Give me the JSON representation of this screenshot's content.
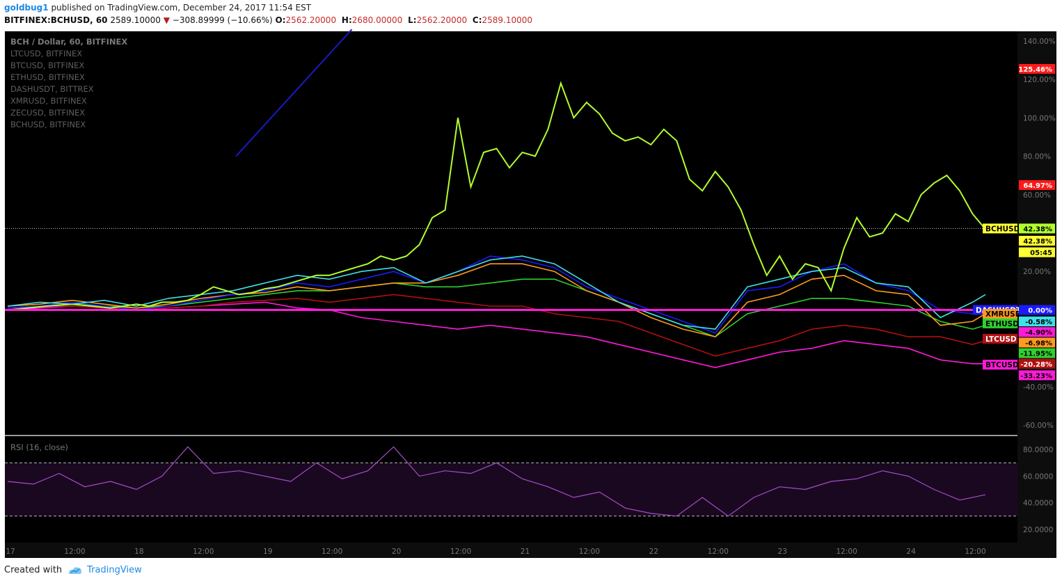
{
  "header": {
    "author": "goldbug1",
    "published_text": "published on TradingView.com, December 24, 2017 11:54 EST",
    "symbol": "BITFINEX:BCHUSD, 60",
    "last": "2589.10000",
    "change": "−308.89999 (−10.66%)",
    "o_label": "O:",
    "o_val": "2562.20000",
    "h_label": "H:",
    "h_val": "2680.00000",
    "l_label": "L:",
    "l_val": "2562.20000",
    "c_label": "C:",
    "c_val": "2589.10000"
  },
  "legend_items": [
    "BCH / Dollar, 60, BITFINEX",
    "LTCUSD, BITFINEX",
    "BTCUSD, BITFINEX",
    "ETHUSD, BITFINEX",
    "DASHUSDT, BITTREX",
    "XMRUSD, BITFINEX",
    "ZECUSD, BITFINEX",
    "BCHUSD, BITFINEX"
  ],
  "rsi_label": "RSI (16, close)",
  "footer": {
    "created_with": "Created with",
    "brand": "TradingView"
  },
  "colors": {
    "background": "#000000",
    "BCHUSD": "#b2ff2e",
    "ZECUSD": "#40e0e8",
    "DASHUSDT": "#1a1aff",
    "XMRUSD": "#ff9a1f",
    "ETHUSD": "#2fd12f",
    "LTCUSD": "#b01010",
    "BTCUSD": "#ff1ad9",
    "rsi": "#a64fc9"
  },
  "chart_data": [
    {
      "type": "line",
      "title": "BCH / Dollar, 60, BITFINEX",
      "x_ticks": [
        "17",
        "12:00",
        "18",
        "12:00",
        "19",
        "12:00",
        "20",
        "12:00",
        "21",
        "12:00",
        "22",
        "12:00",
        "23",
        "12:00",
        "24",
        "12:00"
      ],
      "y_ticks": [
        "140.00%",
        "120.00%",
        "100.00%",
        "80.00%",
        "60.00%",
        "20.00%",
        "-40.00%",
        "-60.00%"
      ],
      "ylim": [
        -65,
        145
      ],
      "markers": [
        {
          "label": "125.46%",
          "value": 125.46,
          "color": "#ff1a1a"
        },
        {
          "label": "64.97%",
          "value": 64.97,
          "color": "#ff1a1a"
        },
        {
          "label": "42.38%",
          "value": 42.38,
          "color": "#b2ff2e"
        },
        {
          "label": "42.38%",
          "value": 36,
          "color": "#ffff33"
        },
        {
          "label": "05:45",
          "value": 30,
          "color": "#ffff33"
        },
        {
          "label": "0.00%",
          "value": 0,
          "color": "#1a1aff"
        },
        {
          "label": "-0.58%",
          "value": -6,
          "color": "#40e0e8"
        },
        {
          "label": "-4.90%",
          "value": -11.5,
          "color": "#ff1ad9"
        },
        {
          "label": "-6.98%",
          "value": -17,
          "color": "#ff9a1f"
        },
        {
          "label": "-11.95%",
          "value": -22.5,
          "color": "#2fd12f"
        },
        {
          "label": "-20.28%",
          "value": -28,
          "color": "#b01010"
        },
        {
          "label": "-33.23%",
          "value": -34,
          "color": "#ff1ad9"
        }
      ],
      "series_tags": [
        {
          "name": "BCHUSD",
          "value": 42.38,
          "bg": "#ffff33",
          "fg": "#000000"
        },
        {
          "name": "DASHUSDT",
          "value": 0,
          "bg": "#1a1aff",
          "fg": "#ffffff"
        },
        {
          "name": "XMRUSD",
          "value": -2,
          "bg": "#ff9a1f",
          "fg": "#000000"
        },
        {
          "name": "ETHUSD",
          "value": -7,
          "bg": "#2fd12f",
          "fg": "#000000"
        },
        {
          "name": "LTCUSD",
          "value": -15,
          "bg": "#b01010",
          "fg": "#ffffff"
        },
        {
          "name": "BTCUSD",
          "value": -28.5,
          "bg": "#ff1ad9",
          "fg": "#000000"
        }
      ],
      "hline": {
        "value": 0,
        "color": "#ff1ad9"
      },
      "dotted_line": {
        "value": 42.38
      },
      "trendline": {
        "x": [
          3.55,
          5.35
        ],
        "y": [
          80,
          146
        ],
        "color": "#1a1ac8"
      },
      "series": [
        {
          "name": "BCHUSD",
          "color": "#b2ff2e",
          "x": [
            0,
            0.3,
            0.6,
            1,
            1.3,
            1.6,
            2,
            2.2,
            2.4,
            2.6,
            2.8,
            3,
            3.2,
            3.4,
            3.6,
            3.8,
            4,
            4.2,
            4.4,
            4.6,
            4.8,
            5,
            5.2,
            5.4,
            5.6,
            5.8,
            6,
            6.2,
            6.4,
            6.6,
            6.8,
            7,
            7.2,
            7.4,
            7.6,
            7.8,
            8,
            8.2,
            8.4,
            8.6,
            8.8,
            9,
            9.2,
            9.4,
            9.6,
            9.8,
            10,
            10.2,
            10.4,
            10.6,
            10.8,
            11,
            11.2,
            11.4,
            11.6,
            11.8,
            12,
            12.2,
            12.4,
            12.6,
            12.8,
            13,
            13.2,
            13.4,
            13.6,
            13.8,
            14,
            14.2,
            14.4,
            14.6,
            14.8,
            15,
            15.2
          ],
          "y": [
            0,
            1,
            2,
            3,
            2,
            1,
            3,
            2,
            4,
            4,
            5,
            8,
            12,
            10,
            8,
            9,
            11,
            12,
            14,
            16,
            18,
            18,
            20,
            22,
            24,
            28,
            26,
            28,
            34,
            48,
            52,
            100,
            64,
            82,
            84,
            74,
            82,
            80,
            94,
            118,
            100,
            108,
            102,
            92,
            88,
            90,
            86,
            94,
            88,
            68,
            62,
            72,
            64,
            52,
            34,
            18,
            28,
            16,
            24,
            22,
            10,
            32,
            48,
            38,
            40,
            50,
            46,
            60,
            66,
            70,
            62,
            50,
            42
          ]
        },
        {
          "name": "ZECUSD",
          "color": "#40e0e8",
          "x": [
            0,
            0.5,
            1,
            1.5,
            2,
            2.5,
            3,
            3.5,
            4,
            4.5,
            5,
            5.5,
            6,
            6.5,
            7,
            7.5,
            8,
            8.5,
            9,
            9.5,
            10,
            10.5,
            11,
            11.5,
            12,
            12.5,
            13,
            13.5,
            14,
            14.5,
            15,
            15.2
          ],
          "y": [
            2,
            4,
            3,
            5,
            2,
            6,
            8,
            10,
            14,
            18,
            16,
            20,
            22,
            14,
            20,
            26,
            28,
            24,
            14,
            4,
            -2,
            -8,
            -10,
            12,
            16,
            20,
            22,
            14,
            12,
            -4,
            4,
            8
          ]
        },
        {
          "name": "DASHUSDT",
          "color": "#1a1aff",
          "x": [
            0,
            0.5,
            1,
            1.5,
            2,
            2.5,
            3,
            3.5,
            4,
            4.5,
            5,
            5.5,
            6,
            6.5,
            7,
            7.5,
            8,
            8.5,
            9,
            9.5,
            10,
            10.5,
            11,
            11.5,
            12,
            12.5,
            13,
            13.5,
            14,
            14.5,
            15,
            15.2
          ],
          "y": [
            1,
            2,
            4,
            2,
            0,
            2,
            5,
            8,
            10,
            14,
            12,
            16,
            20,
            14,
            20,
            28,
            26,
            22,
            12,
            6,
            0,
            -6,
            -12,
            10,
            12,
            20,
            24,
            14,
            10,
            0,
            -2,
            2
          ]
        },
        {
          "name": "XMRUSD",
          "color": "#ff9a1f",
          "x": [
            0,
            0.5,
            1,
            1.5,
            2,
            2.5,
            3,
            3.5,
            4,
            4.5,
            5,
            5.5,
            6,
            6.5,
            7,
            7.5,
            8,
            8.5,
            9,
            9.5,
            10,
            10.5,
            11,
            11.5,
            12,
            12.5,
            13,
            13.5,
            14,
            14.5,
            15,
            15.2
          ],
          "y": [
            2,
            3,
            5,
            3,
            1,
            3,
            6,
            8,
            9,
            12,
            10,
            12,
            14,
            14,
            18,
            24,
            24,
            20,
            10,
            4,
            -4,
            -10,
            -14,
            4,
            8,
            16,
            18,
            10,
            8,
            -8,
            -6,
            -2
          ]
        },
        {
          "name": "ETHUSD",
          "color": "#2fd12f",
          "x": [
            0,
            0.5,
            1,
            1.5,
            2,
            2.5,
            3,
            3.5,
            4,
            4.5,
            5,
            5.5,
            6,
            6.5,
            7,
            7.5,
            8,
            8.5,
            9,
            9.5,
            10,
            10.5,
            11,
            11.5,
            12,
            12.5,
            13,
            13.5,
            14,
            14.5,
            15,
            15.2
          ],
          "y": [
            1,
            2,
            3,
            2,
            1,
            2,
            4,
            6,
            8,
            10,
            10,
            12,
            14,
            12,
            12,
            14,
            16,
            16,
            10,
            4,
            -2,
            -8,
            -14,
            -2,
            2,
            6,
            6,
            4,
            2,
            -6,
            -10,
            -8
          ]
        },
        {
          "name": "LTCUSD",
          "color": "#b01010",
          "x": [
            0,
            0.5,
            1,
            1.5,
            2,
            2.5,
            3,
            3.5,
            4,
            4.5,
            5,
            5.5,
            6,
            6.5,
            7,
            7.5,
            8,
            8.5,
            9,
            9.5,
            10,
            10.5,
            11,
            11.5,
            12,
            12.5,
            13,
            13.5,
            14,
            14.5,
            15,
            15.2
          ],
          "y": [
            1,
            2,
            2,
            1,
            0,
            1,
            2,
            4,
            5,
            6,
            4,
            6,
            8,
            6,
            4,
            2,
            2,
            -2,
            -4,
            -6,
            -12,
            -18,
            -24,
            -20,
            -16,
            -10,
            -8,
            -10,
            -14,
            -14,
            -18,
            -16
          ]
        },
        {
          "name": "BTCUSD",
          "color": "#ff1ad9",
          "x": [
            0,
            0.5,
            1,
            1.5,
            2,
            2.5,
            3,
            3.5,
            4,
            4.5,
            5,
            5.5,
            6,
            6.5,
            7,
            7.5,
            8,
            8.5,
            9,
            9.5,
            10,
            10.5,
            11,
            11.5,
            12,
            12.5,
            13,
            13.5,
            14,
            14.5,
            15,
            15.2
          ],
          "y": [
            0,
            1,
            2,
            1,
            0,
            1,
            2,
            3,
            4,
            1,
            0,
            -4,
            -6,
            -8,
            -10,
            -8,
            -10,
            -12,
            -14,
            -18,
            -22,
            -26,
            -30,
            -26,
            -22,
            -20,
            -16,
            -18,
            -20,
            -26,
            -28,
            -28
          ]
        }
      ]
    },
    {
      "type": "line",
      "title": "RSI (16, close)",
      "y_ticks": [
        "80.0000",
        "60.0000",
        "40.0000",
        "20.0000"
      ],
      "ylim": [
        10,
        90
      ],
      "bands": [
        30,
        70
      ],
      "series": [
        {
          "name": "RSI",
          "color": "#a64fc9",
          "x": [
            0,
            0.4,
            0.8,
            1.2,
            1.6,
            2,
            2.4,
            2.8,
            3.2,
            3.6,
            4,
            4.4,
            4.8,
            5.2,
            5.6,
            6,
            6.4,
            6.8,
            7.2,
            7.6,
            8,
            8.4,
            8.8,
            9.2,
            9.6,
            10,
            10.4,
            10.8,
            11.2,
            11.6,
            12,
            12.4,
            12.8,
            13.2,
            13.6,
            14,
            14.4,
            14.8,
            15.2
          ],
          "y": [
            56,
            54,
            62,
            52,
            56,
            50,
            60,
            82,
            62,
            64,
            60,
            56,
            70,
            58,
            64,
            82,
            60,
            64,
            62,
            70,
            58,
            52,
            44,
            48,
            36,
            32,
            30,
            44,
            30,
            44,
            52,
            50,
            56,
            58,
            64,
            60,
            50,
            42,
            46
          ]
        }
      ]
    }
  ]
}
